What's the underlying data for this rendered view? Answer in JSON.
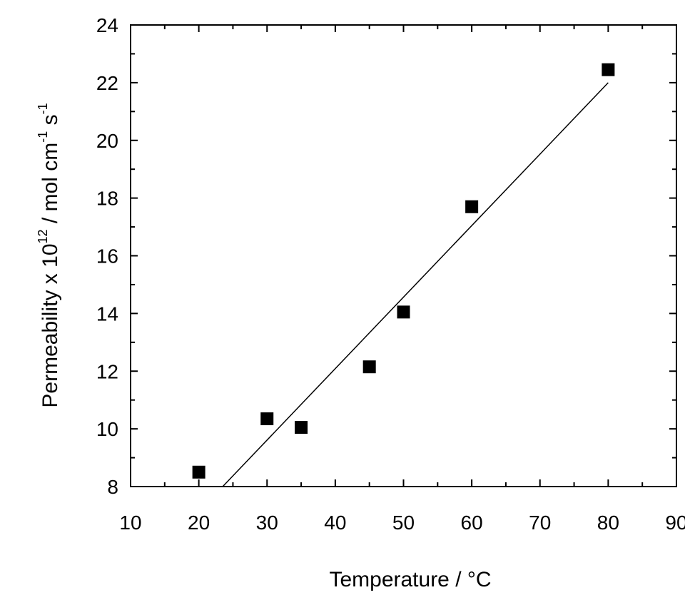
{
  "chart_data": {
    "type": "scatter",
    "xlabel": "Temperature  /  °C",
    "ylabel": {
      "prefix": "Permeability  x  10",
      "exp1": "12",
      "middle": "  /  mol cm",
      "exp2": "-1",
      "middle2": "  s",
      "exp3": "-1"
    },
    "xlim": [
      10,
      90
    ],
    "ylim": [
      8,
      24
    ],
    "x_ticks": [
      10,
      20,
      30,
      40,
      50,
      60,
      70,
      80,
      90
    ],
    "y_ticks": [
      8,
      10,
      12,
      14,
      16,
      18,
      20,
      22,
      24
    ],
    "grid": false,
    "series": [
      {
        "points": [
          {
            "x": 20,
            "y": 8.5
          },
          {
            "x": 30,
            "y": 10.35
          },
          {
            "x": 35,
            "y": 10.05
          },
          {
            "x": 45,
            "y": 12.15
          },
          {
            "x": 50,
            "y": 14.05
          },
          {
            "x": 60,
            "y": 17.7
          },
          {
            "x": 80,
            "y": 22.45
          }
        ],
        "marker": "square",
        "color": "#000000"
      }
    ],
    "fit_line": {
      "start": {
        "x": 23.5,
        "y": 8.0
      },
      "end": {
        "x": 80,
        "y": 22.0
      },
      "color": "#000000"
    }
  }
}
